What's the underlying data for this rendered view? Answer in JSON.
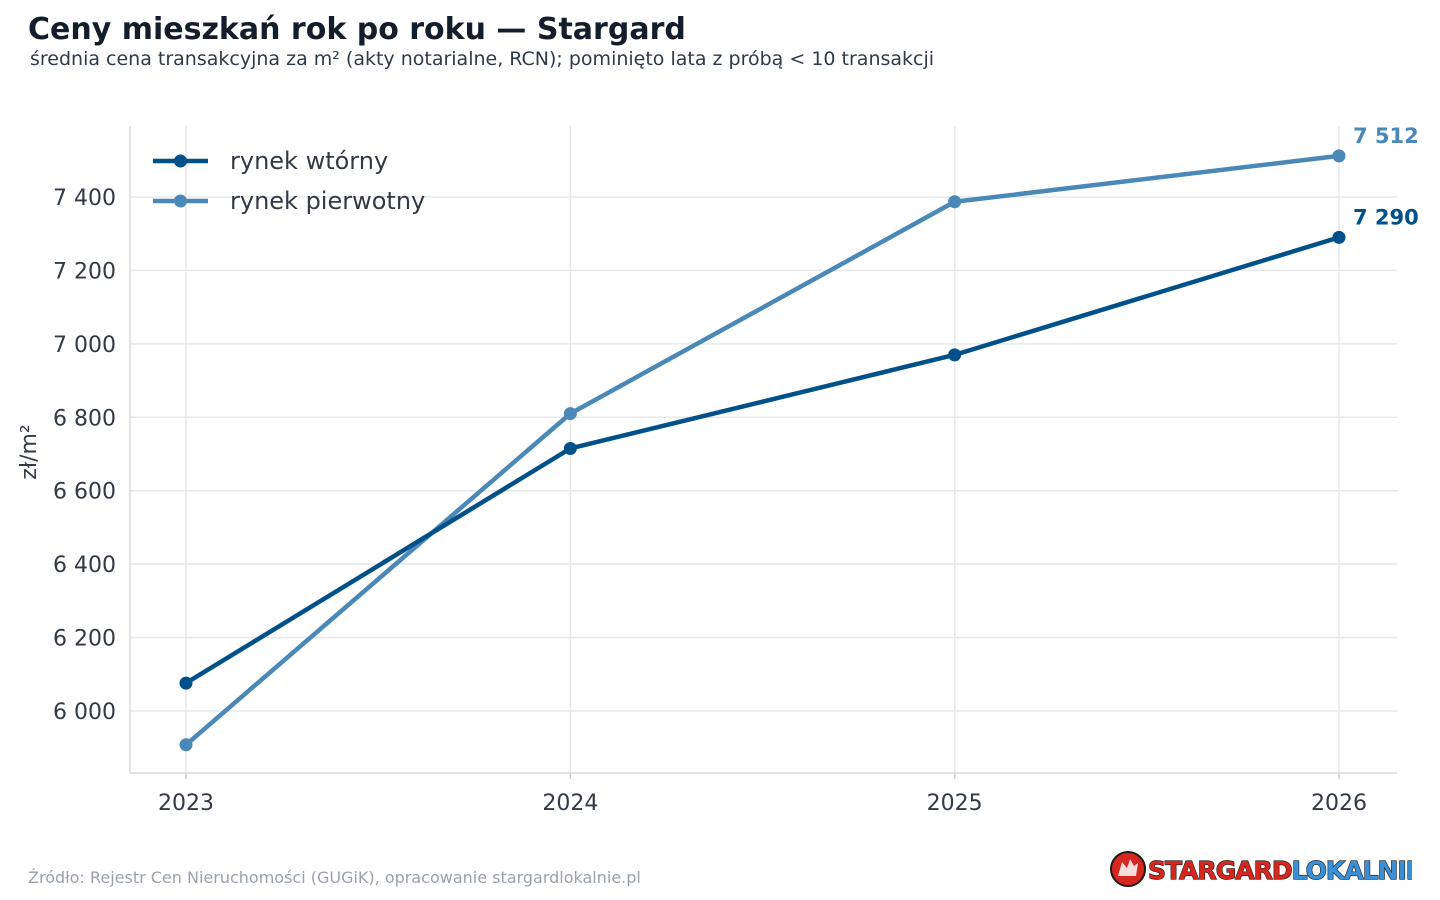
{
  "chart_data": {
    "type": "line",
    "title": "Ceny mieszkań rok po roku — Stargard",
    "subtitle": "średnia cena transakcyjna za m² (akty notarialne, RCN); pominięto lata z próbą < 10 transakcji",
    "xlabel": "",
    "ylabel": "zł/m²",
    "categories": [
      "2023",
      "2024",
      "2025",
      "2026"
    ],
    "y_ticks": [
      6000,
      6200,
      6400,
      6600,
      6800,
      7000,
      7200,
      7400
    ],
    "y_tick_labels": [
      "6 000",
      "6 200",
      "6 400",
      "6 600",
      "6 800",
      "7 000",
      "7 200",
      "7 400"
    ],
    "ylim": [
      5820,
      7580
    ],
    "grid": true,
    "legend_position": "top-left",
    "series": [
      {
        "name": "rynek wtórny",
        "color": "#00508a",
        "values": [
          6076,
          6715,
          6970,
          7290
        ],
        "end_label": "7 290"
      },
      {
        "name": "rynek pierwotny",
        "color": "#4a88b7",
        "values": [
          5908,
          6810,
          7387,
          7512
        ],
        "end_label": "7 512"
      }
    ],
    "source": "Źródło: Rejestr Cen Nieruchomości (GUGiK), opracowanie stargardlokalnie.pl"
  },
  "logo": {
    "text_red": "STARGARD",
    "text_blue": "LOKALNIE.PL",
    "emblem": "griffin-emblem-icon",
    "color_red": "#d7261e",
    "color_blue": "#3a8fd6"
  }
}
